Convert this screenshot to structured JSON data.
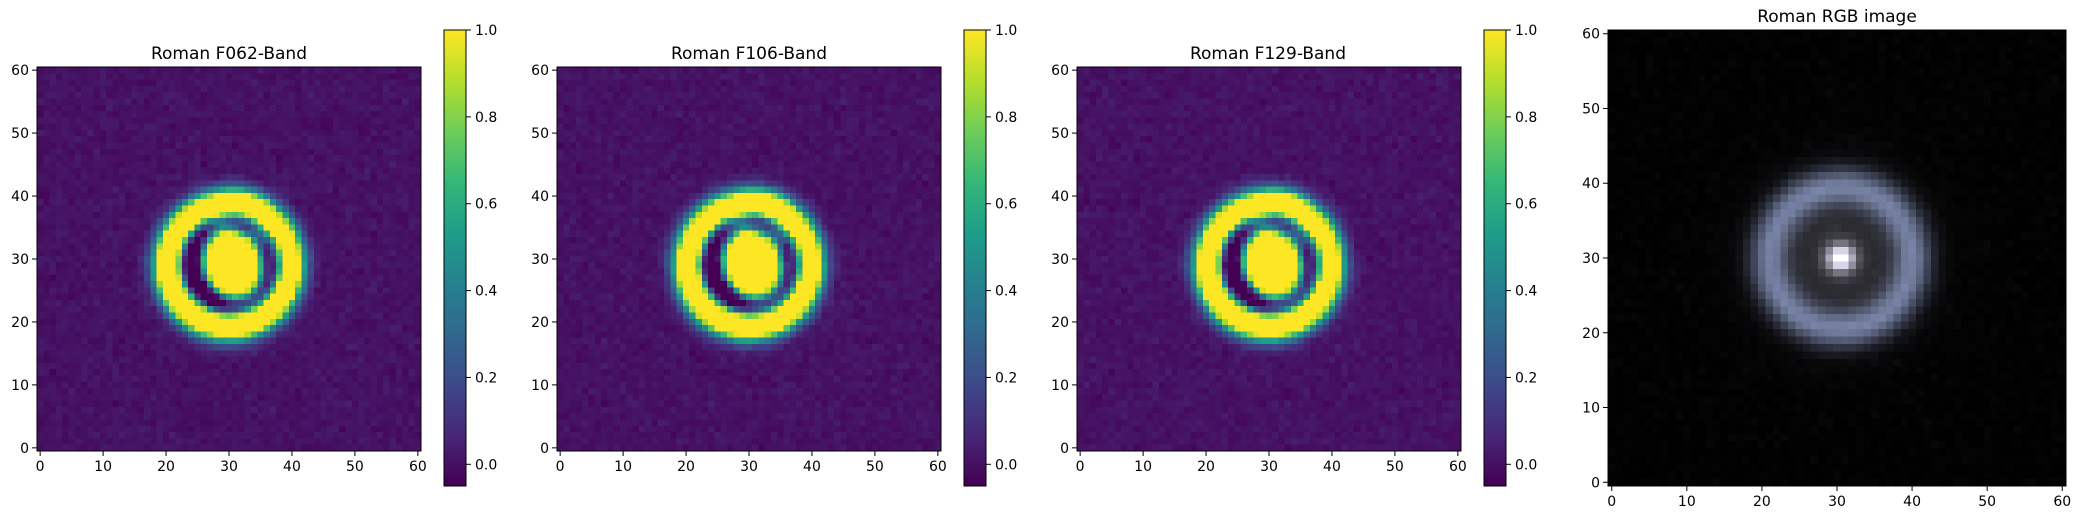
{
  "chart_data": [
    {
      "type": "heatmap",
      "title": "Roman F062-Band",
      "xlim": [
        -0.5,
        60.5
      ],
      "ylim": [
        -0.5,
        60.5
      ],
      "xticks": [
        "0",
        "10",
        "20",
        "30",
        "40",
        "50",
        "60"
      ],
      "yticks": [
        "0",
        "10",
        "20",
        "30",
        "40",
        "50",
        "60"
      ],
      "colormap": "viridis",
      "colorbar": {
        "range": [
          -0.05,
          1.0
        ],
        "ticks": [
          "0.0",
          "0.2",
          "0.4",
          "0.6",
          "0.8",
          "1.0"
        ]
      },
      "image_model": {
        "grid": 61,
        "background": 0.0,
        "noise": 0.03,
        "lens": {
          "cx": 30.5,
          "cy": 29,
          "rx": 4.0,
          "ry": 5.0,
          "tilt_deg": 20,
          "peak": 1.0
        },
        "ring": {
          "cx": 30,
          "cy": 29,
          "r": 9.5,
          "width": 1.7,
          "peak": 1.0
        },
        "outer_arc": {
          "cx": 30,
          "cy": 29,
          "r": 3.5,
          "width": 1.3,
          "peak": 0.7
        },
        "gap_ring": {
          "cx": 30.5,
          "cy": 29.5,
          "r": 7.0,
          "width": 1.5,
          "depth": 0.55
        }
      }
    },
    {
      "type": "heatmap",
      "title": "Roman F106-Band",
      "xlim": [
        -0.5,
        60.5
      ],
      "ylim": [
        -0.5,
        60.5
      ],
      "xticks": [
        "0",
        "10",
        "20",
        "30",
        "40",
        "50",
        "60"
      ],
      "yticks": [
        "0",
        "10",
        "20",
        "30",
        "40",
        "50",
        "60"
      ],
      "colormap": "viridis",
      "colorbar": {
        "range": [
          -0.05,
          1.0
        ],
        "ticks": [
          "0.0",
          "0.2",
          "0.4",
          "0.6",
          "0.8",
          "1.0"
        ]
      },
      "image_model": {
        "grid": 61,
        "background": 0.0,
        "noise": 0.03,
        "lens": {
          "cx": 30.5,
          "cy": 29,
          "rx": 4.0,
          "ry": 5.0,
          "tilt_deg": 20,
          "peak": 1.0
        },
        "ring": {
          "cx": 30,
          "cy": 29,
          "r": 9.5,
          "width": 1.7,
          "peak": 1.0
        },
        "outer_arc": {
          "cx": 30,
          "cy": 29,
          "r": 3.5,
          "width": 1.3,
          "peak": 0.7
        },
        "gap_ring": {
          "cx": 30.5,
          "cy": 29.5,
          "r": 7.0,
          "width": 1.5,
          "depth": 0.55
        }
      }
    },
    {
      "type": "heatmap",
      "title": "Roman F129-Band",
      "xlim": [
        -0.5,
        60.5
      ],
      "ylim": [
        -0.5,
        60.5
      ],
      "xticks": [
        "0",
        "10",
        "20",
        "30",
        "40",
        "50",
        "60"
      ],
      "yticks": [
        "0",
        "10",
        "20",
        "30",
        "40",
        "50",
        "60"
      ],
      "colormap": "viridis",
      "colorbar": {
        "range": [
          -0.05,
          1.0
        ],
        "ticks": [
          "0.0",
          "0.2",
          "0.4",
          "0.6",
          "0.8",
          "1.0"
        ]
      },
      "image_model": {
        "grid": 61,
        "background": 0.0,
        "noise": 0.03,
        "lens": {
          "cx": 30.5,
          "cy": 29,
          "rx": 4.0,
          "ry": 5.0,
          "tilt_deg": 20,
          "peak": 1.0
        },
        "ring": {
          "cx": 30,
          "cy": 29,
          "r": 9.5,
          "width": 1.7,
          "peak": 1.0
        },
        "outer_arc": {
          "cx": 30,
          "cy": 29,
          "r": 3.5,
          "width": 1.3,
          "peak": 0.7
        },
        "gap_ring": {
          "cx": 30.5,
          "cy": 29.5,
          "r": 7.0,
          "width": 1.5,
          "depth": 0.55
        }
      }
    },
    {
      "type": "heatmap",
      "title": "Roman RGB image",
      "xlim": [
        -0.5,
        60.5
      ],
      "ylim": [
        -0.5,
        60.5
      ],
      "xticks": [
        "0",
        "10",
        "20",
        "30",
        "40",
        "50",
        "60"
      ],
      "yticks": [
        "0",
        "10",
        "20",
        "30",
        "40",
        "50",
        "60"
      ],
      "colormap": "rgb",
      "image_model": {
        "grid": 61,
        "background": 0.0,
        "noise": 0.02,
        "core": {
          "cx": 30.5,
          "cy": 30,
          "sigma": 1.3,
          "peak": 1.0
        },
        "halo": {
          "cx": 30.5,
          "cy": 30,
          "sigma": 6.5,
          "peak": 0.35
        },
        "ring": {
          "cx": 30.5,
          "cy": 30,
          "r": 9.5,
          "width": 1.8,
          "peak": 0.65
        },
        "ring_tint": "#b4c8e6"
      }
    }
  ]
}
